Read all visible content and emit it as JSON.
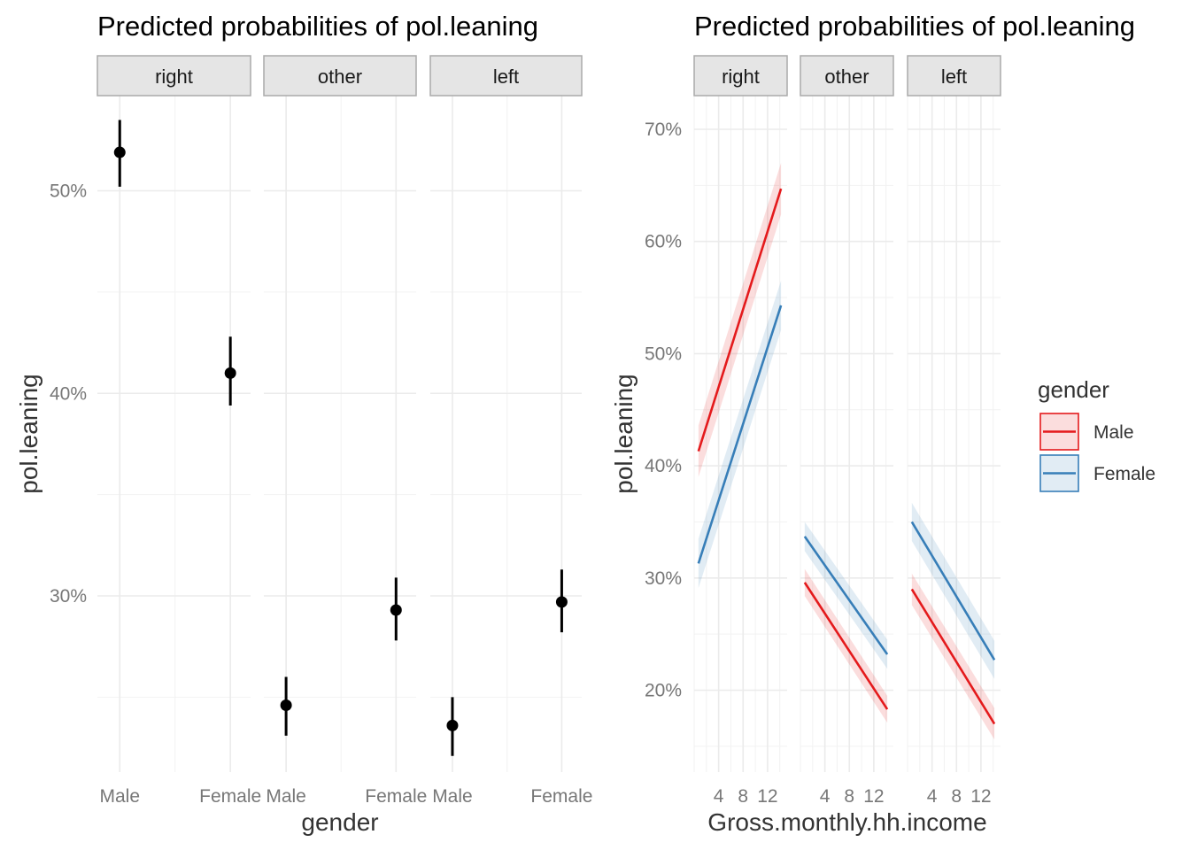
{
  "chart_data": [
    {
      "type": "scatter",
      "title": "Predicted probabilities of pol.leaning",
      "xlabel": "gender",
      "ylabel": "pol.leaning",
      "panels": [
        "right",
        "other",
        "left"
      ],
      "categories": [
        "Male",
        "Female"
      ],
      "ylim": [
        0.213,
        0.547
      ],
      "y_ticks": [
        0.3,
        0.4,
        0.5
      ],
      "y_tick_labels": [
        "30%",
        "40%",
        "50%"
      ],
      "grid": true,
      "series": [
        {
          "panel": "right",
          "points": [
            {
              "x": "Male",
              "y": 0.519,
              "lo": 0.502,
              "hi": 0.535
            },
            {
              "x": "Female",
              "y": 0.41,
              "lo": 0.394,
              "hi": 0.428
            }
          ]
        },
        {
          "panel": "other",
          "points": [
            {
              "x": "Male",
              "y": 0.246,
              "lo": 0.231,
              "hi": 0.26
            },
            {
              "x": "Female",
              "y": 0.293,
              "lo": 0.278,
              "hi": 0.309
            }
          ]
        },
        {
          "panel": "left",
          "points": [
            {
              "x": "Male",
              "y": 0.236,
              "lo": 0.221,
              "hi": 0.25
            },
            {
              "x": "Female",
              "y": 0.297,
              "lo": 0.282,
              "hi": 0.313
            }
          ]
        }
      ]
    },
    {
      "type": "line",
      "title": "Predicted probabilities of pol.leaning",
      "xlabel": "Gross.monthly.hh.income",
      "ylabel": "pol.leaning",
      "panels": [
        "right",
        "other",
        "left"
      ],
      "xlim": [
        0.0,
        15.2
      ],
      "x_ticks": [
        4,
        8,
        12
      ],
      "x_tick_labels": [
        "4",
        "8",
        "12"
      ],
      "ylim": [
        0.127,
        0.73
      ],
      "y_ticks": [
        0.2,
        0.3,
        0.4,
        0.5,
        0.6,
        0.7
      ],
      "y_tick_labels": [
        "20%",
        "30%",
        "40%",
        "50%",
        "60%",
        "70%"
      ],
      "grid": true,
      "legend": {
        "title": "gender",
        "position": "right",
        "entries": [
          {
            "name": "Male",
            "color": "#e41a1c"
          },
          {
            "name": "Female",
            "color": "#377eb8"
          }
        ]
      },
      "series": [
        {
          "panel": "right",
          "name": "Male",
          "x": [
            0.7,
            14.2
          ],
          "y": [
            0.413,
            0.647
          ],
          "band": 0.023
        },
        {
          "panel": "right",
          "name": "Female",
          "x": [
            0.7,
            14.2
          ],
          "y": [
            0.313,
            0.543
          ],
          "band": 0.022
        },
        {
          "panel": "other",
          "name": "Male",
          "x": [
            0.7,
            14.2
          ],
          "y": [
            0.296,
            0.183
          ],
          "band": 0.012
        },
        {
          "panel": "other",
          "name": "Female",
          "x": [
            0.7,
            14.2
          ],
          "y": [
            0.337,
            0.232
          ],
          "band": 0.013
        },
        {
          "panel": "left",
          "name": "Male",
          "x": [
            0.7,
            14.2
          ],
          "y": [
            0.29,
            0.17
          ],
          "band": 0.014
        },
        {
          "panel": "left",
          "name": "Female",
          "x": [
            0.7,
            14.2
          ],
          "y": [
            0.35,
            0.227
          ],
          "band": 0.017
        }
      ]
    }
  ]
}
